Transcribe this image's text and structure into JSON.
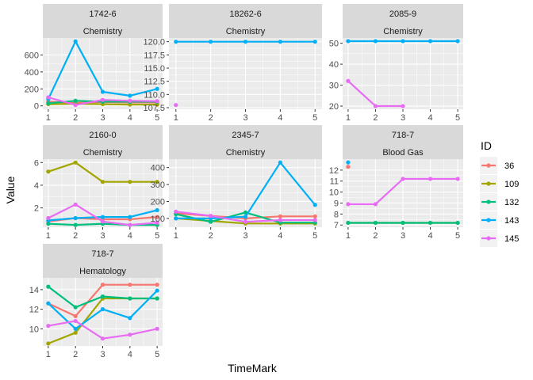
{
  "chart_data": {
    "type": "line",
    "xlabel": "TimeMark",
    "ylabel": "Value",
    "legend": {
      "title": "ID",
      "position": "right",
      "entries": [
        {
          "id": "36",
          "color": "#F8766D"
        },
        {
          "id": "109",
          "color": "#A3A500"
        },
        {
          "id": "132",
          "color": "#00BF7D"
        },
        {
          "id": "143",
          "color": "#00B0F6"
        },
        {
          "id": "145",
          "color": "#E76BF3"
        }
      ]
    },
    "grid": true,
    "panels": [
      {
        "code": "1742-6",
        "category": "Chemistry",
        "yticks": [
          0,
          200,
          400,
          600
        ],
        "ylim": [
          -40,
          800
        ],
        "xticks": [
          1,
          2,
          3,
          4,
          5
        ],
        "series": [
          {
            "id": "36",
            "x": [
              1,
              2,
              3,
              4,
              5
            ],
            "y": [
              50,
              35,
              45,
              40,
              40
            ]
          },
          {
            "id": "109",
            "x": [
              1,
              2,
              3,
              4,
              5
            ],
            "y": [
              20,
              25,
              20,
              15,
              15
            ]
          },
          {
            "id": "132",
            "x": [
              1,
              2,
              3,
              4,
              5
            ],
            "y": [
              30,
              60,
              50,
              50,
              50
            ]
          },
          {
            "id": "143",
            "x": [
              1,
              2,
              3,
              4,
              5
            ],
            "y": [
              80,
              760,
              165,
              120,
              200
            ]
          },
          {
            "id": "145",
            "x": [
              1,
              2,
              3,
              4,
              5
            ],
            "y": [
              100,
              10,
              70,
              60,
              55
            ]
          }
        ]
      },
      {
        "code": "18262-6",
        "category": "Chemistry",
        "yticks": [
          107.5,
          110.0,
          112.5,
          115.0,
          117.5,
          120.0
        ],
        "ytick_labels": [
          "107.5",
          "110.0",
          "112.5",
          "115.0",
          "117.5",
          "120.0"
        ],
        "ylim": [
          107.2,
          120.7
        ],
        "xticks": [
          1,
          2,
          3,
          4,
          5
        ],
        "series": [
          {
            "id": "143",
            "x": [
              1,
              2,
              3,
              4,
              5
            ],
            "y": [
              120,
              120,
              120,
              120,
              120
            ]
          },
          {
            "id": "145",
            "x": [
              1
            ],
            "y": [
              108
            ]
          }
        ]
      },
      {
        "code": "2085-9",
        "category": "Chemistry",
        "yticks": [
          20,
          30,
          40,
          50
        ],
        "ylim": [
          18.5,
          52.5
        ],
        "xticks": [
          1,
          2,
          3,
          4,
          5
        ],
        "series": [
          {
            "id": "143",
            "x": [
              1,
              2,
              3,
              4,
              5
            ],
            "y": [
              51,
              51,
              51,
              51,
              51
            ]
          },
          {
            "id": "145",
            "x": [
              1,
              2,
              3
            ],
            "y": [
              32,
              20,
              20
            ]
          }
        ]
      },
      {
        "code": "2160-0",
        "category": "Chemistry",
        "yticks": [
          2,
          4,
          6
        ],
        "ylim": [
          0.3,
          6.3
        ],
        "xticks": [
          1,
          2,
          3,
          4,
          5
        ],
        "series": [
          {
            "id": "36",
            "x": [
              1,
              2,
              3,
              4,
              5
            ],
            "y": [
              0.8,
              1.1,
              1.0,
              1.0,
              1.2
            ]
          },
          {
            "id": "109",
            "x": [
              1,
              2,
              3,
              4,
              5
            ],
            "y": [
              5.2,
              6.0,
              4.3,
              4.3,
              4.3
            ]
          },
          {
            "id": "132",
            "x": [
              1,
              2,
              3,
              4,
              5
            ],
            "y": [
              0.6,
              0.5,
              0.6,
              0.5,
              0.5
            ]
          },
          {
            "id": "143",
            "x": [
              1,
              2,
              3,
              4,
              5
            ],
            "y": [
              0.9,
              1.1,
              1.2,
              1.2,
              1.8
            ]
          },
          {
            "id": "145",
            "x": [
              1,
              2,
              3,
              4,
              5
            ],
            "y": [
              1.1,
              2.3,
              0.8,
              0.5,
              0.7
            ]
          }
        ]
      },
      {
        "code": "2345-7",
        "category": "Chemistry",
        "yticks": [
          100,
          200,
          300,
          400
        ],
        "ylim": [
          48,
          450
        ],
        "xticks": [
          1,
          2,
          3,
          4,
          5
        ],
        "series": [
          {
            "id": "36",
            "x": [
              1,
              2,
              3,
              4,
              5
            ],
            "y": [
              130,
              115,
              100,
              112,
              112
            ]
          },
          {
            "id": "109",
            "x": [
              1,
              2,
              3,
              4,
              5
            ],
            "y": [
              100,
              85,
              70,
              70,
              70
            ]
          },
          {
            "id": "132",
            "x": [
              1,
              2,
              3,
              4,
              5
            ],
            "y": [
              125,
              80,
              135,
              75,
              75
            ]
          },
          {
            "id": "143",
            "x": [
              1,
              2,
              3,
              4,
              5
            ],
            "y": [
              100,
              100,
              110,
              430,
              180
            ]
          },
          {
            "id": "145",
            "x": [
              1,
              2,
              3,
              4,
              5
            ],
            "y": [
              140,
              115,
              80,
              90,
              90
            ]
          }
        ]
      },
      {
        "code": "718-7",
        "category": "Blood Gas",
        "yticks": [
          7,
          8,
          9,
          10,
          11,
          12
        ],
        "ylim": [
          6.8,
          13.0
        ],
        "xticks": [
          1,
          2,
          3,
          4,
          5
        ],
        "series": [
          {
            "id": "36",
            "x": [
              1
            ],
            "y": [
              12.3
            ]
          },
          {
            "id": "109",
            "x": [
              1,
              2,
              3,
              4,
              5
            ],
            "y": [
              7.2,
              7.2,
              7.2,
              7.2,
              7.2
            ]
          },
          {
            "id": "132",
            "x": [
              1,
              2,
              3,
              4,
              5
            ],
            "y": [
              7.2,
              7.2,
              7.2,
              7.2,
              7.2
            ]
          },
          {
            "id": "143",
            "x": [
              1
            ],
            "y": [
              12.7
            ]
          },
          {
            "id": "145",
            "x": [
              1,
              2,
              3,
              4,
              5
            ],
            "y": [
              8.9,
              8.9,
              11.2,
              11.2,
              11.2
            ]
          }
        ]
      },
      {
        "code": "718-7",
        "category": "Hematology",
        "yticks": [
          10,
          12,
          14
        ],
        "ylim": [
          8.25,
          15.2
        ],
        "xticks": [
          1,
          2,
          3,
          4,
          5
        ],
        "series": [
          {
            "id": "36",
            "x": [
              1,
              2,
              3,
              4,
              5
            ],
            "y": [
              12.6,
              11.3,
              14.5,
              14.5,
              14.5
            ]
          },
          {
            "id": "109",
            "x": [
              1,
              2,
              3,
              4,
              5
            ],
            "y": [
              8.5,
              9.6,
              13.1,
              13.1,
              13.1
            ]
          },
          {
            "id": "132",
            "x": [
              1,
              2,
              3,
              4,
              5
            ],
            "y": [
              14.3,
              12.2,
              13.3,
              13.1,
              13.1
            ]
          },
          {
            "id": "143",
            "x": [
              1,
              2,
              3,
              4,
              5
            ],
            "y": [
              12.6,
              10.0,
              12.0,
              11.1,
              13.9
            ]
          },
          {
            "id": "145",
            "x": [
              1,
              2,
              3,
              4,
              5
            ],
            "y": [
              10.3,
              10.8,
              9.0,
              9.4,
              10.0
            ]
          }
        ]
      }
    ]
  }
}
